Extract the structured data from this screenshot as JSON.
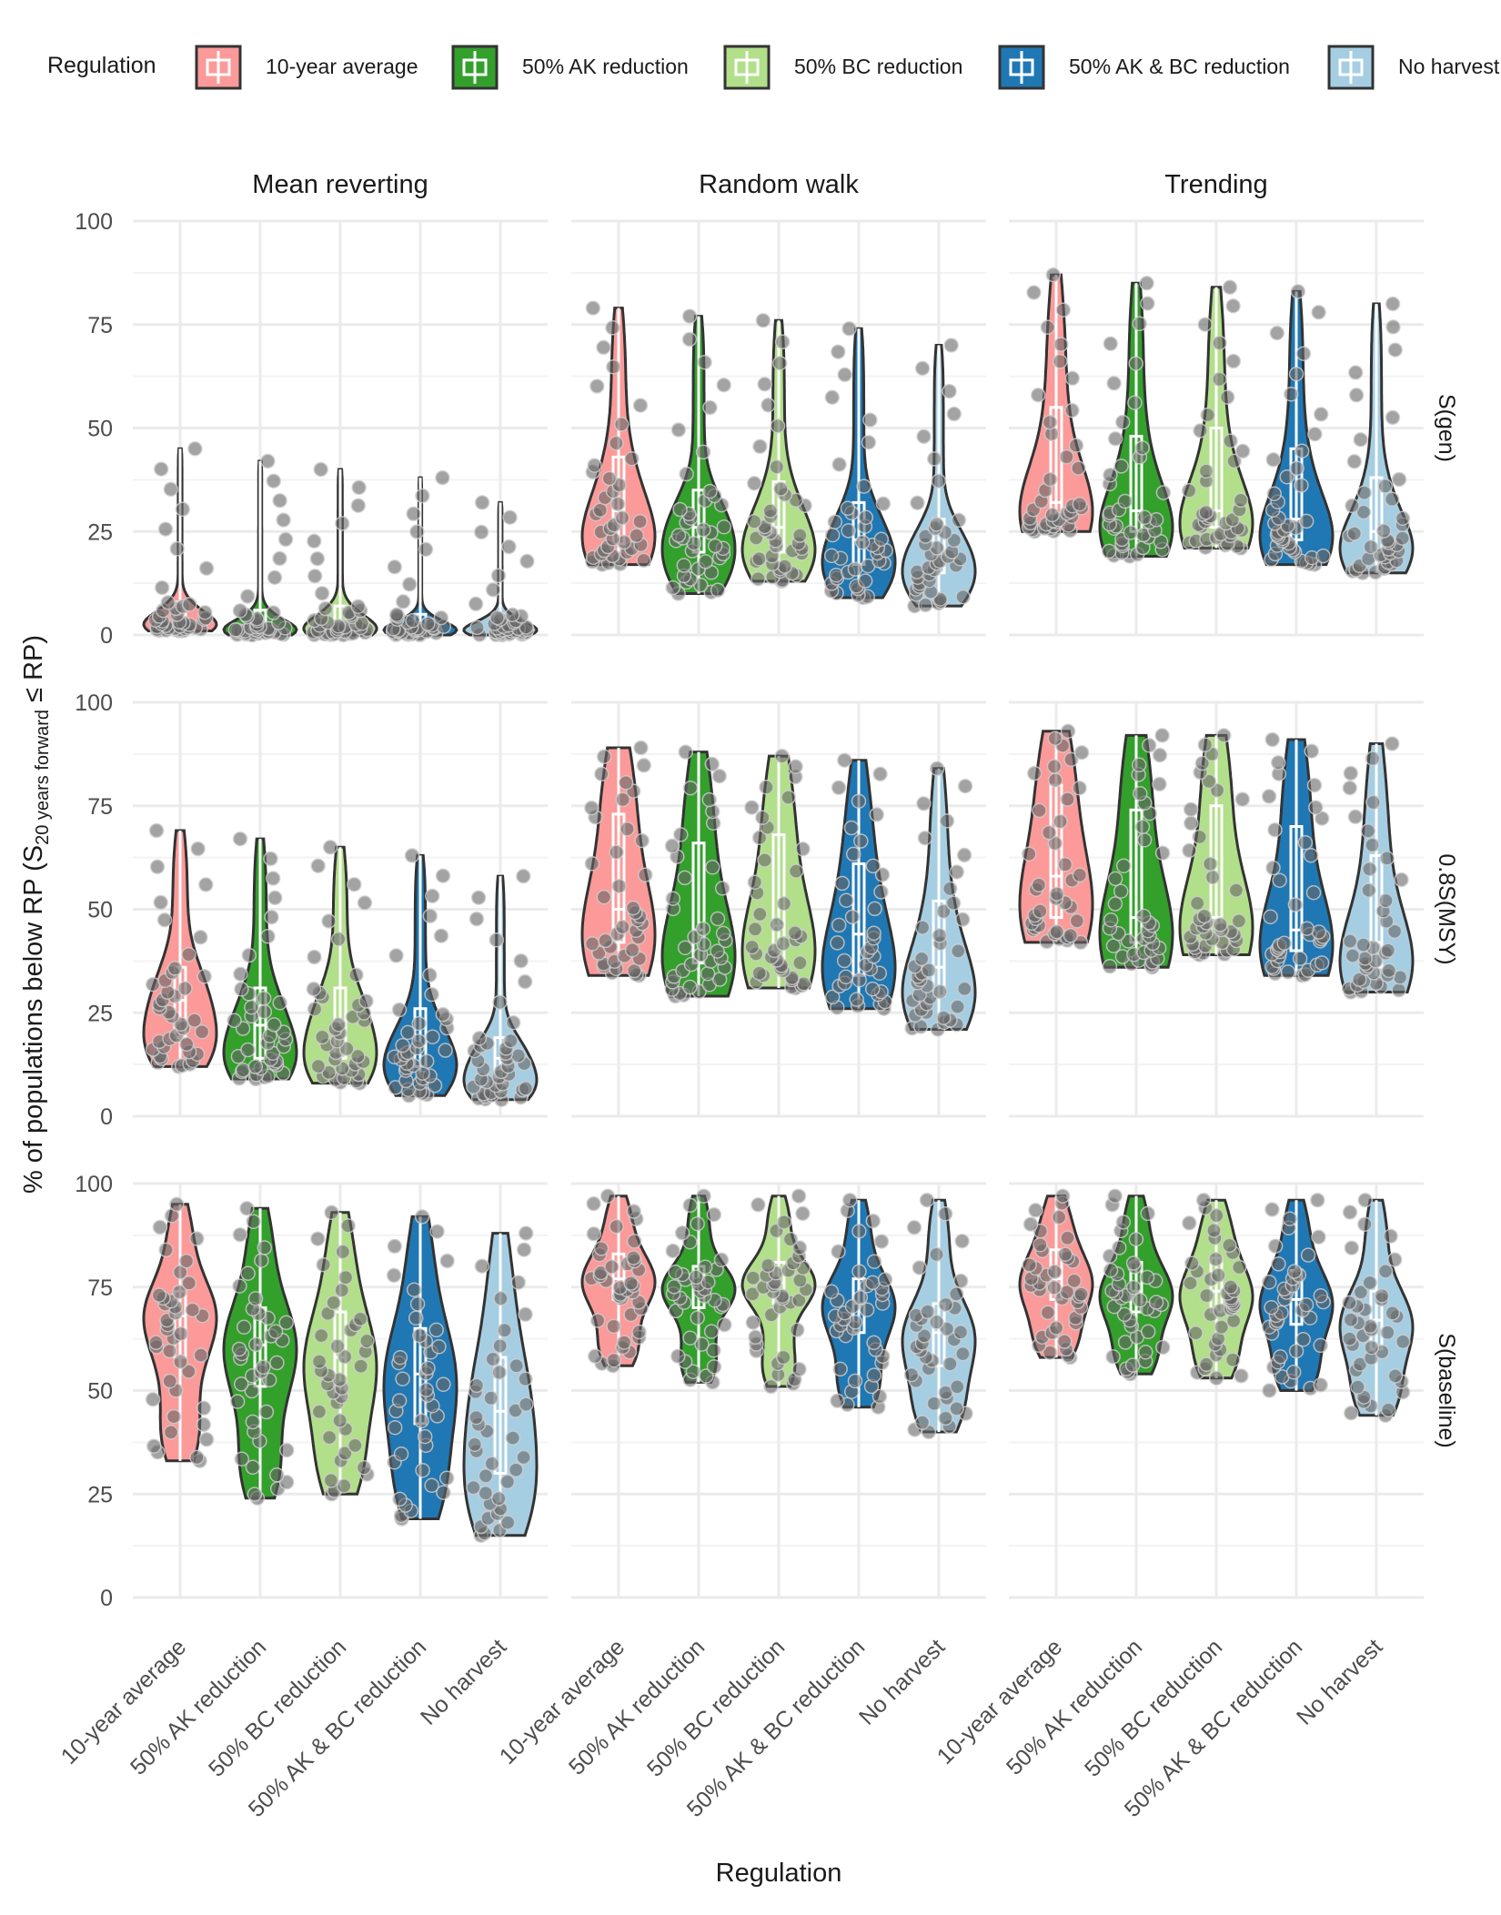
{
  "legend": {
    "title": "Regulation",
    "items": [
      {
        "label": "10-year average",
        "color": "#fb9a99"
      },
      {
        "label": "50% AK reduction",
        "color": "#33a02c"
      },
      {
        "label": "50% BC reduction",
        "color": "#b2df8a"
      },
      {
        "label": "50% AK & BC reduction",
        "color": "#1f78b4"
      },
      {
        "label": "No harvest",
        "color": "#a6cee3"
      }
    ]
  },
  "axes": {
    "xlabel": "Regulation",
    "ylabel_main": "% of populations below RP (S",
    "ylabel_sub": "20 years forward",
    "ylabel_rest": " ≤ RP)",
    "yticks": [
      "0",
      "25",
      "50",
      "75",
      "100"
    ],
    "ylim": [
      0,
      100
    ]
  },
  "chart_data": {
    "type": "violin",
    "columns": [
      "Mean reverting",
      "Random walk",
      "Trending"
    ],
    "rows": [
      "S(gen)",
      "0.8S(MSY)",
      "S(baseline)"
    ],
    "categories": [
      "10-year average",
      "50% AK reduction",
      "50% BC reduction",
      "50% AK & BC reduction",
      "No harvest"
    ],
    "ylim": [
      0,
      100
    ],
    "grid": true,
    "legend_position": "top",
    "panels": [
      {
        "row": "S(gen)",
        "column": "Mean reverting",
        "series": [
          {
            "name": "10-year average",
            "min": 1,
            "q1": 2,
            "median": 4,
            "q3": 8,
            "max": 45
          },
          {
            "name": "50% AK reduction",
            "min": 0,
            "q1": 1,
            "median": 2,
            "q3": 6,
            "max": 42
          },
          {
            "name": "50% BC reduction",
            "min": 0,
            "q1": 1,
            "median": 3,
            "q3": 7,
            "max": 40
          },
          {
            "name": "50% AK & BC reduction",
            "min": 0,
            "q1": 1,
            "median": 2,
            "q3": 5,
            "max": 38
          },
          {
            "name": "No harvest",
            "min": 0,
            "q1": 1,
            "median": 2,
            "q3": 5,
            "max": 32
          }
        ]
      },
      {
        "row": "S(gen)",
        "column": "Random walk",
        "series": [
          {
            "name": "10-year average",
            "min": 17,
            "q1": 22,
            "median": 30,
            "q3": 43,
            "max": 79
          },
          {
            "name": "50% AK reduction",
            "min": 10,
            "q1": 20,
            "median": 26,
            "q3": 35,
            "max": 77
          },
          {
            "name": "50% BC reduction",
            "min": 13,
            "q1": 20,
            "median": 26,
            "q3": 37,
            "max": 76
          },
          {
            "name": "50% AK & BC reduction",
            "min": 9,
            "q1": 17,
            "median": 23,
            "q3": 32,
            "max": 74
          },
          {
            "name": "No harvest",
            "min": 7,
            "q1": 15,
            "median": 20,
            "q3": 28,
            "max": 70
          }
        ]
      },
      {
        "row": "S(gen)",
        "column": "Trending",
        "series": [
          {
            "name": "10-year average",
            "min": 25,
            "q1": 28,
            "median": 32,
            "q3": 55,
            "max": 87
          },
          {
            "name": "50% AK reduction",
            "min": 19,
            "q1": 25,
            "median": 30,
            "q3": 48,
            "max": 85
          },
          {
            "name": "50% BC reduction",
            "min": 21,
            "q1": 26,
            "median": 30,
            "q3": 50,
            "max": 84
          },
          {
            "name": "50% AK & BC reduction",
            "min": 17,
            "q1": 23,
            "median": 28,
            "q3": 45,
            "max": 83
          },
          {
            "name": "No harvest",
            "min": 15,
            "q1": 20,
            "median": 25,
            "q3": 38,
            "max": 80
          }
        ]
      },
      {
        "row": "0.8S(MSY)",
        "column": "Mean reverting",
        "series": [
          {
            "name": "10-year average",
            "min": 12,
            "q1": 19,
            "median": 28,
            "q3": 36,
            "max": 69
          },
          {
            "name": "50% AK reduction",
            "min": 9,
            "q1": 14,
            "median": 22,
            "q3": 31,
            "max": 67
          },
          {
            "name": "50% BC reduction",
            "min": 8,
            "q1": 14,
            "median": 23,
            "q3": 31,
            "max": 65
          },
          {
            "name": "50% AK & BC reduction",
            "min": 5,
            "q1": 12,
            "median": 17,
            "q3": 26,
            "max": 63
          },
          {
            "name": "No harvest",
            "min": 4,
            "q1": 8,
            "median": 14,
            "q3": 19,
            "max": 58
          }
        ]
      },
      {
        "row": "0.8S(MSY)",
        "column": "Random walk",
        "series": [
          {
            "name": "10-year average",
            "min": 34,
            "q1": 42,
            "median": 50,
            "q3": 73,
            "max": 89
          },
          {
            "name": "50% AK reduction",
            "min": 29,
            "q1": 37,
            "median": 45,
            "q3": 66,
            "max": 88
          },
          {
            "name": "50% BC reduction",
            "min": 31,
            "q1": 38,
            "median": 46,
            "q3": 68,
            "max": 87
          },
          {
            "name": "50% AK & BC reduction",
            "min": 26,
            "q1": 34,
            "median": 44,
            "q3": 61,
            "max": 86
          },
          {
            "name": "No harvest",
            "min": 21,
            "q1": 29,
            "median": 36,
            "q3": 52,
            "max": 84
          }
        ]
      },
      {
        "row": "0.8S(MSY)",
        "column": "Trending",
        "series": [
          {
            "name": "10-year average",
            "min": 42,
            "q1": 48,
            "median": 58,
            "q3": 80,
            "max": 93
          },
          {
            "name": "50% AK reduction",
            "min": 36,
            "q1": 42,
            "median": 48,
            "q3": 74,
            "max": 92
          },
          {
            "name": "50% BC reduction",
            "min": 39,
            "q1": 44,
            "median": 48,
            "q3": 75,
            "max": 92
          },
          {
            "name": "50% AK & BC reduction",
            "min": 34,
            "q1": 40,
            "median": 45,
            "q3": 70,
            "max": 91
          },
          {
            "name": "No harvest",
            "min": 30,
            "q1": 36,
            "median": 42,
            "q3": 63,
            "max": 90
          }
        ]
      },
      {
        "row": "S(baseline)",
        "column": "Mean reverting",
        "series": [
          {
            "name": "10-year average",
            "min": 33,
            "q1": 58,
            "median": 68,
            "q3": 74,
            "max": 95
          },
          {
            "name": "50% AK reduction",
            "min": 24,
            "q1": 51,
            "median": 61,
            "q3": 70,
            "max": 94
          },
          {
            "name": "50% BC reduction",
            "min": 25,
            "q1": 48,
            "median": 58,
            "q3": 69,
            "max": 93
          },
          {
            "name": "50% AK & BC reduction",
            "min": 19,
            "q1": 42,
            "median": 54,
            "q3": 65,
            "max": 92
          },
          {
            "name": "No harvest",
            "min": 15,
            "q1": 30,
            "median": 45,
            "q3": 58,
            "max": 88
          }
        ]
      },
      {
        "row": "S(baseline)",
        "column": "Random walk",
        "series": [
          {
            "name": "10-year average",
            "min": 56,
            "q1": 72,
            "median": 77,
            "q3": 83,
            "max": 97
          },
          {
            "name": "50% AK reduction",
            "min": 52,
            "q1": 70,
            "median": 75,
            "q3": 80,
            "max": 97
          },
          {
            "name": "50% BC reduction",
            "min": 51,
            "q1": 71,
            "median": 76,
            "q3": 81,
            "max": 97
          },
          {
            "name": "50% AK & BC reduction",
            "min": 46,
            "q1": 64,
            "median": 71,
            "q3": 77,
            "max": 96
          },
          {
            "name": "No harvest",
            "min": 40,
            "q1": 56,
            "median": 64,
            "q3": 71,
            "max": 96
          }
        ]
      },
      {
        "row": "S(baseline)",
        "column": "Trending",
        "series": [
          {
            "name": "10-year average",
            "min": 58,
            "q1": 72,
            "median": 77,
            "q3": 84,
            "max": 97
          },
          {
            "name": "50% AK reduction",
            "min": 54,
            "q1": 69,
            "median": 74,
            "q3": 81,
            "max": 97
          },
          {
            "name": "50% BC reduction",
            "min": 53,
            "q1": 69,
            "median": 74,
            "q3": 82,
            "max": 96
          },
          {
            "name": "50% AK & BC reduction",
            "min": 50,
            "q1": 66,
            "median": 72,
            "q3": 79,
            "max": 96
          },
          {
            "name": "No harvest",
            "min": 44,
            "q1": 60,
            "median": 67,
            "q3": 74,
            "max": 96
          }
        ]
      }
    ]
  }
}
